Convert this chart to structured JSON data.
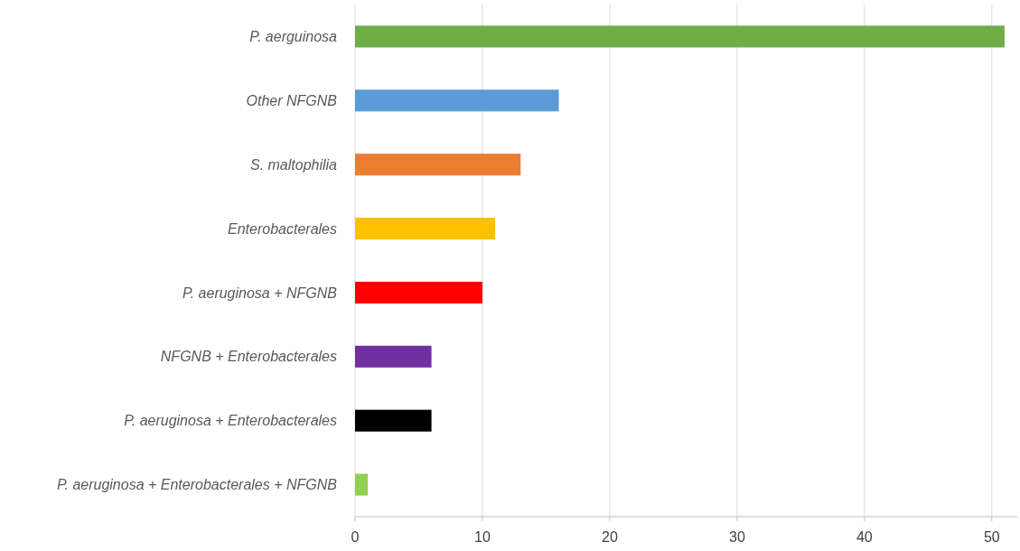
{
  "chart_data": {
    "type": "bar",
    "orientation": "horizontal",
    "categories": [
      "P. aerguinosa",
      "Other NFGNB",
      "S. maltophilia",
      "Enterobacterales",
      "P. aeruginosa + NFGNB",
      "NFGNB + Enterobacterales",
      "P. aeruginosa + Enterobacterales",
      "P. aeruginosa + Enterobacterales + NFGNB"
    ],
    "values": [
      51,
      16,
      13,
      11,
      10,
      6,
      6,
      1
    ],
    "colors": [
      "#70ad47",
      "#5b9bd5",
      "#ed7d31",
      "#ffc000",
      "#ff0000",
      "#7030a0",
      "#000000",
      "#92d050"
    ],
    "xlim": [
      0,
      52
    ],
    "xticks": [
      0,
      10,
      20,
      30,
      40,
      50
    ],
    "grid": "x"
  }
}
